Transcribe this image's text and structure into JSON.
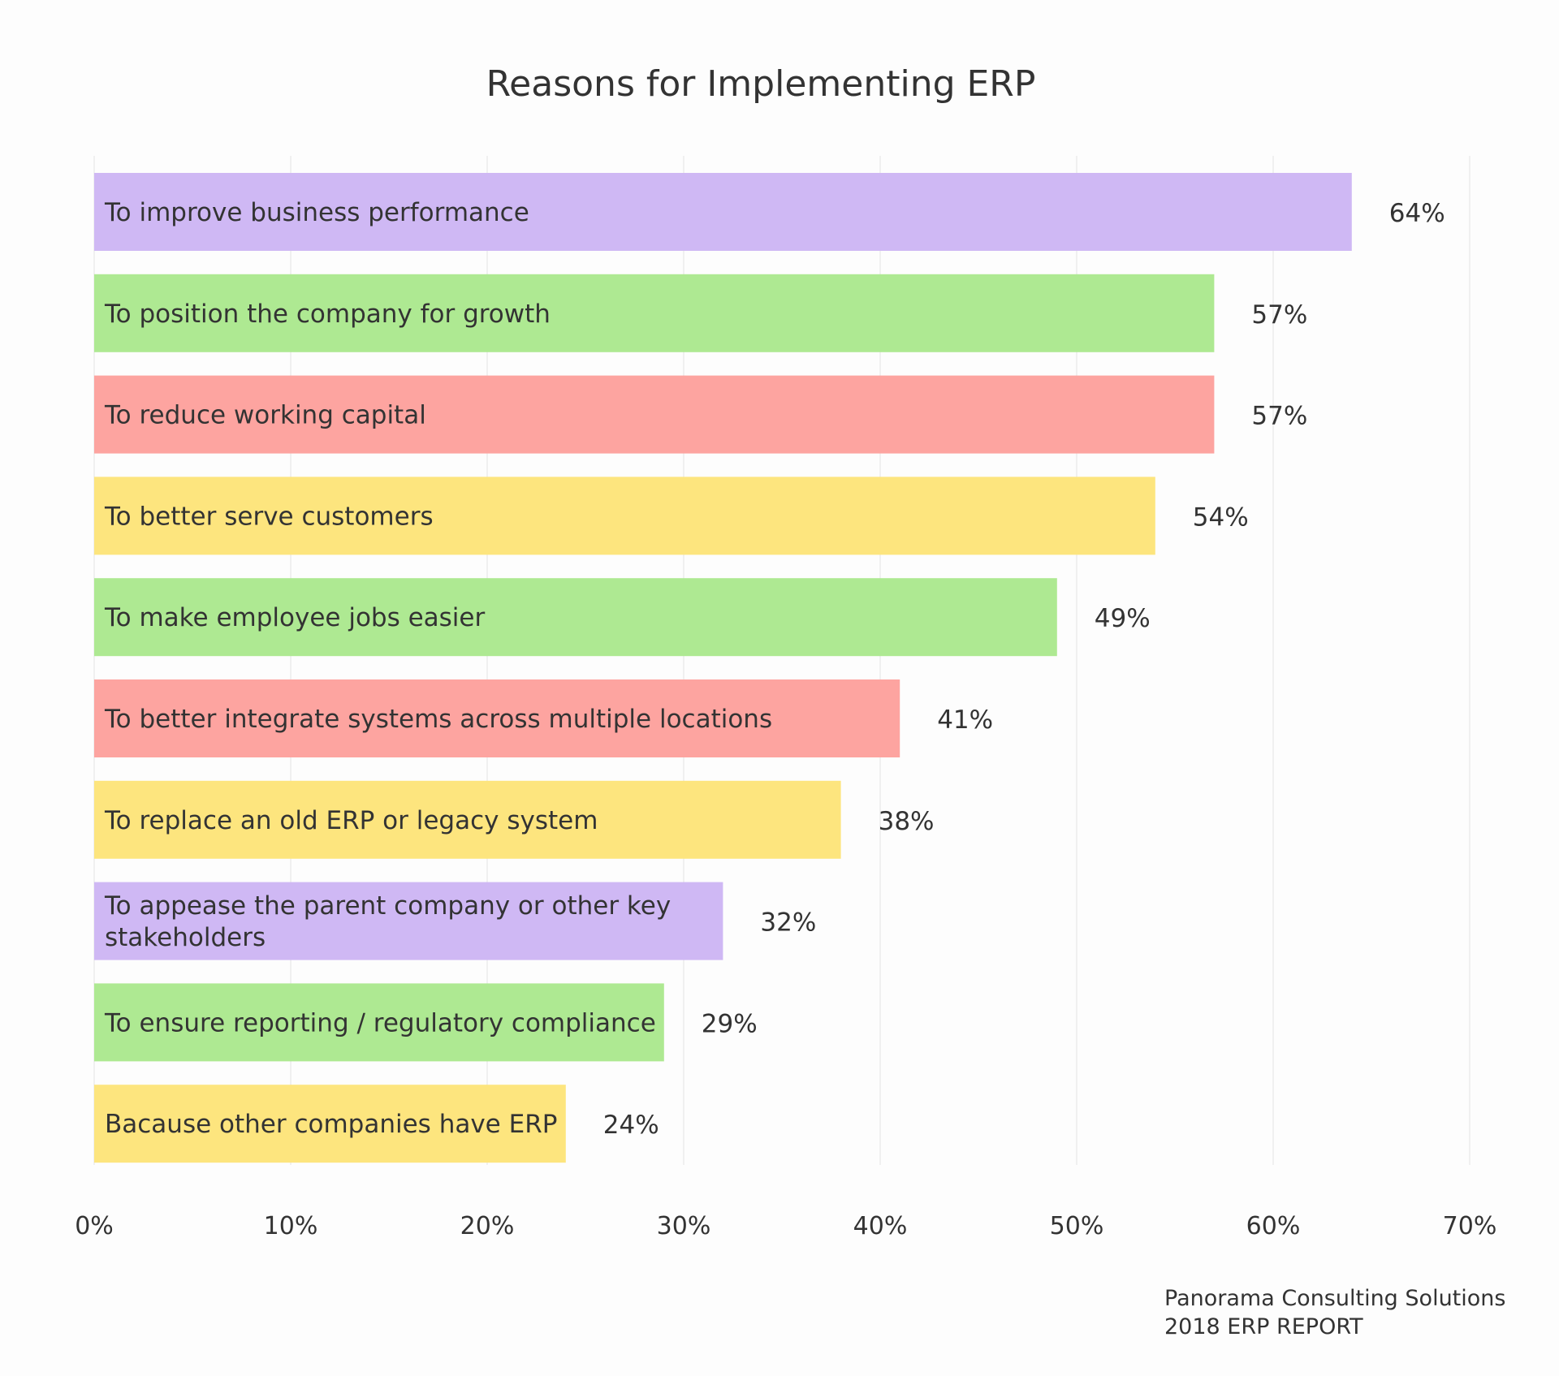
{
  "chart_data": {
    "type": "bar",
    "orientation": "horizontal",
    "title": "Reasons for Implementing ERP",
    "xlabel": "",
    "ylabel": "",
    "categories": [
      "To improve business performance",
      "To position the company for growth",
      "To reduce working capital",
      "To better serve customers",
      "To make employee jobs easier",
      "To better integrate systems across multiple locations",
      "To replace an old ERP or legacy system",
      "To appease the parent company or other key stakeholders",
      "To ensure reporting / regulatory compliance",
      "Bacause other companies have ERP"
    ],
    "category_lines": [
      [
        "To improve business performance"
      ],
      [
        "To position the company for growth"
      ],
      [
        "To reduce working capital"
      ],
      [
        "To better serve customers"
      ],
      [
        "To make employee jobs easier"
      ],
      [
        "To better integrate systems across multiple locations"
      ],
      [
        "To replace an old ERP or legacy system"
      ],
      [
        "To appease the parent company or other key",
        "stakeholders"
      ],
      [
        "To ensure reporting / regulatory compliance"
      ],
      [
        "Bacause other companies have ERP"
      ]
    ],
    "values": [
      64,
      57,
      57,
      54,
      49,
      41,
      38,
      32,
      29,
      24
    ],
    "value_labels": [
      "64%",
      "57%",
      "57%",
      "54%",
      "49%",
      "41%",
      "38%",
      "32%",
      "29%",
      "24%"
    ],
    "colors": [
      "#cfb8f4",
      "#aee992",
      "#fda4a0",
      "#fde57e",
      "#aee992",
      "#fda4a0",
      "#fde57e",
      "#cfb8f4",
      "#aee992",
      "#fde57e"
    ],
    "xlim": [
      0,
      70
    ],
    "xticks": [
      0,
      10,
      20,
      30,
      40,
      50,
      60,
      70
    ],
    "xtick_labels": [
      "0%",
      "10%",
      "20%",
      "30%",
      "40%",
      "50%",
      "60%",
      "70%"
    ],
    "grid": true,
    "legend": "none"
  },
  "source": {
    "line1": "Panorama Consulting Solutions",
    "line2": "2018 ERP REPORT"
  },
  "colors": {
    "text": "#333333",
    "grid": "#ebebeb",
    "background": "#fdfdfd"
  }
}
